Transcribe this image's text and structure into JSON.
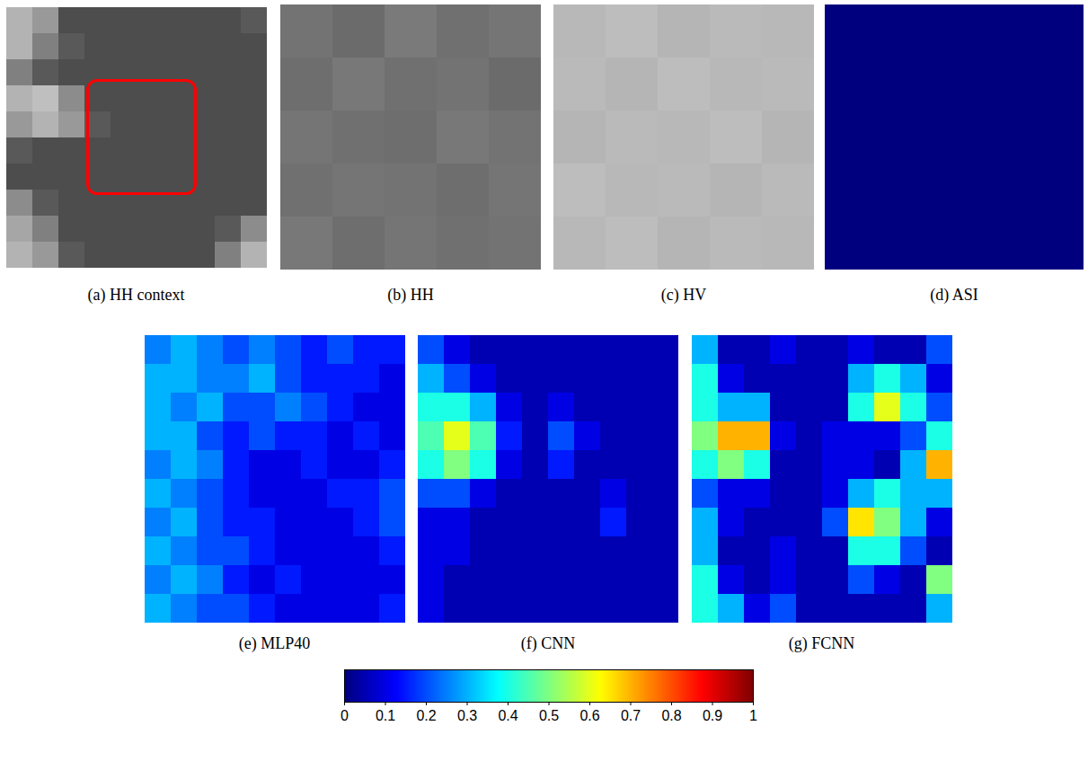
{
  "chart_data": [
    {
      "type": "heatmap",
      "title": "(a) HH context",
      "color": "gray",
      "color_range": [
        0,
        1
      ],
      "cells": [
        [
          0.7,
          0.6,
          0.3,
          0.3,
          0.3,
          0.3,
          0.3,
          0.3,
          0.3,
          0.35
        ],
        [
          0.7,
          0.5,
          0.35,
          0.3,
          0.3,
          0.3,
          0.3,
          0.3,
          0.3,
          0.3
        ],
        [
          0.5,
          0.35,
          0.3,
          0.3,
          0.3,
          0.3,
          0.3,
          0.3,
          0.3,
          0.3
        ],
        [
          0.7,
          0.75,
          0.55,
          0.3,
          0.3,
          0.3,
          0.3,
          0.3,
          0.3,
          0.3
        ],
        [
          0.6,
          0.7,
          0.6,
          0.35,
          0.3,
          0.3,
          0.3,
          0.3,
          0.3,
          0.3
        ],
        [
          0.35,
          0.3,
          0.3,
          0.3,
          0.3,
          0.3,
          0.3,
          0.3,
          0.3,
          0.3
        ],
        [
          0.3,
          0.3,
          0.3,
          0.3,
          0.3,
          0.3,
          0.3,
          0.3,
          0.3,
          0.3
        ],
        [
          0.55,
          0.35,
          0.3,
          0.3,
          0.3,
          0.3,
          0.3,
          0.3,
          0.3,
          0.3
        ],
        [
          0.65,
          0.5,
          0.3,
          0.3,
          0.3,
          0.3,
          0.3,
          0.3,
          0.35,
          0.55
        ],
        [
          0.7,
          0.6,
          0.35,
          0.3,
          0.3,
          0.3,
          0.3,
          0.3,
          0.5,
          0.7
        ]
      ]
    },
    {
      "type": "heatmap",
      "title": "(b) HH",
      "color": "gray",
      "color_range": [
        0,
        1
      ],
      "cells": [
        [
          0.45,
          0.42,
          0.48,
          0.44,
          0.46
        ],
        [
          0.43,
          0.47,
          0.44,
          0.45,
          0.42
        ],
        [
          0.46,
          0.44,
          0.43,
          0.47,
          0.45
        ],
        [
          0.44,
          0.46,
          0.45,
          0.43,
          0.46
        ],
        [
          0.47,
          0.43,
          0.46,
          0.44,
          0.45
        ]
      ]
    },
    {
      "type": "heatmap",
      "title": "(c) HV",
      "color": "gray",
      "color_range": [
        0,
        1
      ],
      "cells": [
        [
          0.72,
          0.74,
          0.71,
          0.73,
          0.72
        ],
        [
          0.73,
          0.71,
          0.74,
          0.72,
          0.73
        ],
        [
          0.71,
          0.73,
          0.72,
          0.74,
          0.71
        ],
        [
          0.74,
          0.72,
          0.73,
          0.71,
          0.73
        ],
        [
          0.72,
          0.74,
          0.71,
          0.73,
          0.72
        ]
      ]
    },
    {
      "type": "heatmap",
      "title": "(d) ASI",
      "color": "jet",
      "color_range": [
        0,
        1
      ],
      "cells": [
        [
          0
        ]
      ]
    },
    {
      "type": "heatmap",
      "title": "(e) MLP40",
      "color": "jet",
      "color_range": [
        0,
        1
      ],
      "cells": [
        [
          0.25,
          0.3,
          0.25,
          0.2,
          0.25,
          0.2,
          0.15,
          0.2,
          0.15,
          0.15
        ],
        [
          0.3,
          0.3,
          0.25,
          0.25,
          0.3,
          0.2,
          0.15,
          0.15,
          0.15,
          0.1
        ],
        [
          0.3,
          0.25,
          0.3,
          0.2,
          0.2,
          0.25,
          0.2,
          0.15,
          0.1,
          0.1
        ],
        [
          0.3,
          0.3,
          0.2,
          0.15,
          0.2,
          0.15,
          0.15,
          0.1,
          0.15,
          0.1
        ],
        [
          0.25,
          0.3,
          0.25,
          0.15,
          0.1,
          0.1,
          0.15,
          0.1,
          0.1,
          0.15
        ],
        [
          0.3,
          0.25,
          0.2,
          0.15,
          0.1,
          0.1,
          0.1,
          0.15,
          0.15,
          0.2
        ],
        [
          0.25,
          0.3,
          0.2,
          0.15,
          0.15,
          0.1,
          0.1,
          0.1,
          0.15,
          0.2
        ],
        [
          0.3,
          0.25,
          0.2,
          0.2,
          0.15,
          0.1,
          0.1,
          0.1,
          0.1,
          0.15
        ],
        [
          0.25,
          0.3,
          0.25,
          0.15,
          0.1,
          0.15,
          0.1,
          0.1,
          0.1,
          0.1
        ],
        [
          0.3,
          0.25,
          0.2,
          0.2,
          0.15,
          0.1,
          0.1,
          0.1,
          0.1,
          0.15
        ]
      ]
    },
    {
      "type": "heatmap",
      "title": "(f) CNN",
      "color": "jet",
      "color_range": [
        0,
        1
      ],
      "cells": [
        [
          0.2,
          0.1,
          0.05,
          0.05,
          0.05,
          0.05,
          0.05,
          0.05,
          0.05,
          0.05
        ],
        [
          0.3,
          0.2,
          0.1,
          0.05,
          0.05,
          0.05,
          0.05,
          0.05,
          0.05,
          0.05
        ],
        [
          0.4,
          0.4,
          0.3,
          0.1,
          0.05,
          0.1,
          0.05,
          0.05,
          0.05,
          0.05
        ],
        [
          0.45,
          0.6,
          0.45,
          0.15,
          0.05,
          0.2,
          0.1,
          0.05,
          0.05,
          0.05
        ],
        [
          0.4,
          0.5,
          0.4,
          0.1,
          0.05,
          0.15,
          0.05,
          0.05,
          0.05,
          0.05
        ],
        [
          0.2,
          0.2,
          0.1,
          0.05,
          0.05,
          0.05,
          0.05,
          0.1,
          0.05,
          0.05
        ],
        [
          0.1,
          0.1,
          0.05,
          0.05,
          0.05,
          0.05,
          0.05,
          0.15,
          0.05,
          0.05
        ],
        [
          0.1,
          0.1,
          0.05,
          0.05,
          0.05,
          0.05,
          0.05,
          0.05,
          0.05,
          0.05
        ],
        [
          0.1,
          0.05,
          0.05,
          0.05,
          0.05,
          0.05,
          0.05,
          0.05,
          0.05,
          0.05
        ],
        [
          0.1,
          0.05,
          0.05,
          0.05,
          0.05,
          0.05,
          0.05,
          0.05,
          0.05,
          0.05
        ]
      ]
    },
    {
      "type": "heatmap",
      "title": "(g) FCNN",
      "color": "jet",
      "color_range": [
        0,
        1
      ],
      "cells": [
        [
          0.3,
          0.05,
          0.05,
          0.1,
          0.05,
          0.05,
          0.1,
          0.05,
          0.05,
          0.2
        ],
        [
          0.4,
          0.1,
          0.05,
          0.05,
          0.05,
          0.05,
          0.3,
          0.4,
          0.3,
          0.1
        ],
        [
          0.4,
          0.3,
          0.3,
          0.05,
          0.05,
          0.05,
          0.4,
          0.6,
          0.4,
          0.2
        ],
        [
          0.5,
          0.7,
          0.7,
          0.1,
          0.05,
          0.1,
          0.1,
          0.1,
          0.2,
          0.4
        ],
        [
          0.4,
          0.5,
          0.4,
          0.05,
          0.05,
          0.1,
          0.1,
          0.05,
          0.3,
          0.7
        ],
        [
          0.2,
          0.1,
          0.1,
          0.05,
          0.05,
          0.1,
          0.3,
          0.4,
          0.3,
          0.3
        ],
        [
          0.3,
          0.1,
          0.05,
          0.05,
          0.05,
          0.2,
          0.65,
          0.5,
          0.3,
          0.1
        ],
        [
          0.3,
          0.05,
          0.05,
          0.1,
          0.05,
          0.05,
          0.4,
          0.4,
          0.2,
          0.05
        ],
        [
          0.4,
          0.1,
          0.05,
          0.1,
          0.05,
          0.05,
          0.2,
          0.1,
          0.05,
          0.5
        ],
        [
          0.4,
          0.3,
          0.1,
          0.2,
          0.05,
          0.05,
          0.05,
          0.05,
          0.05,
          0.3
        ]
      ]
    },
    {
      "type": "colorbar",
      "color": "jet",
      "xlim": [
        0,
        1
      ],
      "xticks": [
        0,
        0.1,
        0.2,
        0.3,
        0.4,
        0.5,
        0.6,
        0.7,
        0.8,
        0.9,
        1
      ]
    }
  ]
}
